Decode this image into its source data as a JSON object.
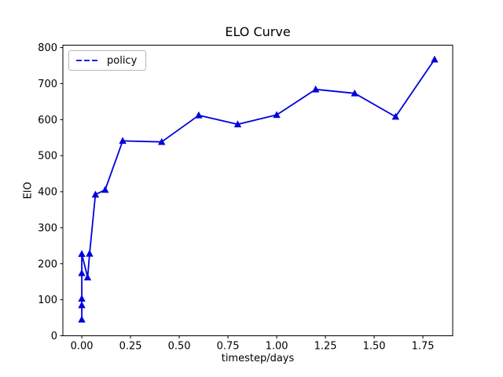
{
  "chart_data": {
    "type": "line",
    "title": "ELO Curve",
    "xlabel": "timestep/days",
    "ylabel": "ElO",
    "legend": {
      "position": "upper left",
      "entries": [
        "policy"
      ],
      "sample_line_style": "dashed"
    },
    "line_color": "#0000dd",
    "marker": "triangle-up",
    "plot_line_style": "solid",
    "grid": false,
    "xlim": [
      -0.097,
      1.903
    ],
    "ylim": [
      0,
      806.7
    ],
    "x_ticks": {
      "values": [
        0,
        0.25,
        0.5,
        0.75,
        1.0,
        1.25,
        1.5,
        1.75
      ],
      "labels": [
        "0.00",
        "0.25",
        "0.50",
        "0.75",
        "1.00",
        "1.25",
        "1.50",
        "1.75"
      ]
    },
    "y_ticks": {
      "values": [
        0,
        100,
        200,
        300,
        400,
        500,
        600,
        700,
        800
      ],
      "labels": [
        "0",
        "100",
        "200",
        "300",
        "400",
        "500",
        "600",
        "700",
        "800"
      ]
    },
    "series": [
      {
        "name": "policy",
        "x": [
          0.0,
          0.0,
          0.0,
          0.0,
          0.0,
          0.03,
          0.04,
          0.07,
          0.12,
          0.21,
          0.41,
          0.6,
          0.8,
          1.0,
          1.2,
          1.4,
          1.61,
          1.81
        ],
        "y": [
          45,
          85,
          103,
          174,
          227,
          162,
          228,
          392,
          405,
          541,
          538,
          612,
          587,
          613,
          684,
          673,
          608,
          767
        ]
      }
    ]
  }
}
